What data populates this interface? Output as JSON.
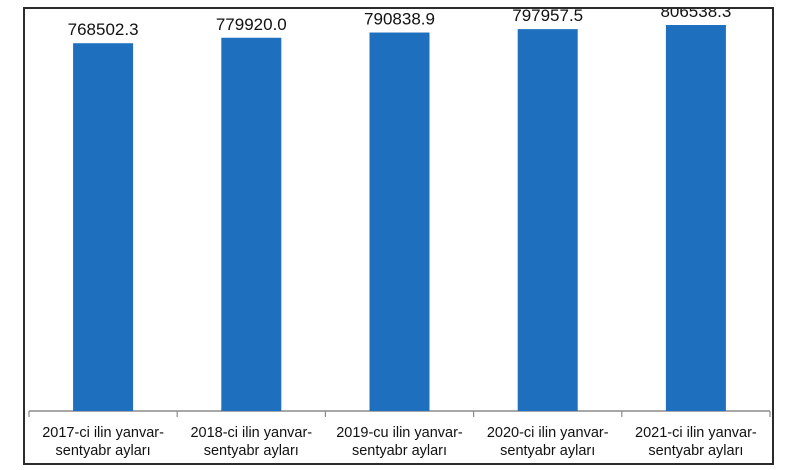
{
  "chart_data": {
    "type": "bar",
    "categories": [
      [
        "2017-ci ilin yanvar-",
        "sentyabr ayları"
      ],
      [
        "2018-ci ilin yanvar-",
        "sentyabr ayları"
      ],
      [
        "2019-cu ilin yanvar-",
        "sentyabr ayları"
      ],
      [
        "2020-ci ilin yanvar-",
        "sentyabr ayları"
      ],
      [
        "2021-ci ilin yanvar-",
        "sentyabr ayları"
      ]
    ],
    "values": [
      768502.3,
      779920.0,
      790838.9,
      797957.5,
      806538.3
    ],
    "value_labels": [
      "768502.3",
      "779920.0",
      "790838.9",
      "797957.5",
      "806538.3"
    ],
    "title": "",
    "xlabel": "",
    "ylabel": "",
    "ylim": [
      0,
      840000
    ],
    "grid": false,
    "legend": "none",
    "colors": {
      "bar": "#1f6fbf",
      "axis": "#8c8c8c",
      "frame": "#2b2b2b"
    }
  }
}
